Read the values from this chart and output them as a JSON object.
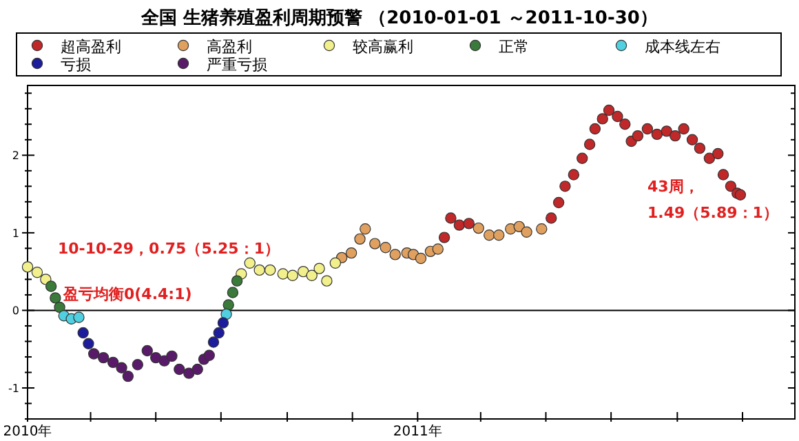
{
  "chart_data": {
    "type": "scatter",
    "title": "全国 生猪养殖盈利周期预警 （2010-01-01 ～2011-10-30）",
    "legend": "top",
    "grid": false,
    "marker": "circle",
    "xlim": [
      "2010-01-01",
      "2011-12-20"
    ],
    "xticks": [
      {
        "value": "2010-01-01",
        "label": "2010年"
      },
      {
        "value": "2010-03-01",
        "label": null
      },
      {
        "value": "2010-05-01",
        "label": null
      },
      {
        "value": "2010-07-01",
        "label": null
      },
      {
        "value": "2010-09-01",
        "label": null
      },
      {
        "value": "2010-11-01",
        "label": null
      },
      {
        "value": "2011-01-01",
        "label": "2011年"
      },
      {
        "value": "2011-03-01",
        "label": null
      },
      {
        "value": "2011-05-01",
        "label": null
      },
      {
        "value": "2011-07-01",
        "label": null
      },
      {
        "value": "2011-09-01",
        "label": null
      },
      {
        "value": "2011-11-01",
        "label": null
      }
    ],
    "ylim": [
      -1.4,
      2.9
    ],
    "yticks": [
      {
        "value": -1.4,
        "label": null
      },
      {
        "value": -1.2,
        "label": null
      },
      {
        "value": -1,
        "label": "-1"
      },
      {
        "value": -0.8,
        "label": null
      },
      {
        "value": -0.6,
        "label": null
      },
      {
        "value": -0.4,
        "label": null
      },
      {
        "value": -0.2,
        "label": null
      },
      0,
      {
        "value": 0.2,
        "label": null
      },
      {
        "value": 0.4,
        "label": null
      },
      {
        "value": 0.6,
        "label": null
      },
      {
        "value": 0.8,
        "label": null
      },
      1,
      {
        "value": 1.2,
        "label": null
      },
      {
        "value": 1.4,
        "label": null
      },
      {
        "value": 1.6,
        "label": null
      },
      {
        "value": 1.8,
        "label": null
      },
      2,
      {
        "value": 2.2,
        "label": null
      },
      {
        "value": 2.4,
        "label": null
      },
      {
        "value": 2.6,
        "label": null
      },
      {
        "value": 2.8,
        "label": null
      }
    ],
    "ref_lines": [
      {
        "axis": "y",
        "value": 0,
        "label": "盈亏均衡0(4.4:1)",
        "color": "#000000"
      }
    ],
    "annotations": [
      "10-10-29，0.75（5.25：1）",
      "43周，",
      "1.49（5.89：1）"
    ],
    "series": [
      {
        "name": "超高盈利",
        "color": "#c0282a",
        "x": [
          "2011-01-26",
          "2011-02-01",
          "2011-02-09",
          "2011-02-18",
          "2011-05-06",
          "2011-05-13",
          "2011-05-19",
          "2011-05-27",
          "2011-06-04",
          "2011-06-11",
          "2011-06-16",
          "2011-06-23",
          "2011-06-29",
          "2011-07-07",
          "2011-07-14",
          "2011-07-20",
          "2011-07-26",
          "2011-08-04",
          "2011-08-13",
          "2011-08-22",
          "2011-08-30",
          "2011-09-07",
          "2011-09-15",
          "2011-09-22",
          "2011-10-01",
          "2011-10-09",
          "2011-10-14",
          "2011-10-21",
          "2011-10-27",
          "2011-10-30"
        ],
        "values": [
          0.94,
          1.19,
          1.1,
          1.12,
          1.19,
          1.39,
          1.6,
          1.75,
          1.96,
          2.14,
          2.34,
          2.47,
          2.58,
          2.5,
          2.4,
          2.18,
          2.25,
          2.34,
          2.27,
          2.31,
          2.25,
          2.34,
          2.2,
          2.09,
          1.96,
          2.02,
          1.75,
          1.6,
          1.51,
          1.49
        ]
      },
      {
        "name": "高盈利",
        "color": "#e0a060",
        "x": [
          "2010-10-22",
          "2010-10-31",
          "2010-11-08",
          "2010-11-13",
          "2010-11-22",
          "2010-12-02",
          "2010-12-11",
          "2010-12-22",
          "2010-12-28",
          "2011-01-04",
          "2011-01-13",
          "2011-01-20",
          "2011-02-27",
          "2011-03-09",
          "2011-03-18",
          "2011-03-29",
          "2011-04-06",
          "2011-04-13",
          "2011-04-27"
        ],
        "values": [
          0.68,
          0.74,
          0.92,
          1.05,
          0.86,
          0.81,
          0.72,
          0.74,
          0.72,
          0.67,
          0.76,
          0.79,
          1.06,
          0.97,
          0.97,
          1.05,
          1.08,
          1.01,
          1.05
        ]
      },
      {
        "name": "较高赢利",
        "color": "#f2f08c",
        "x": [
          "2010-01-01",
          "2010-01-10",
          "2010-01-18",
          "2010-07-20",
          "2010-07-28",
          "2010-08-06",
          "2010-08-16",
          "2010-08-28",
          "2010-09-06",
          "2010-09-16",
          "2010-09-24",
          "2010-10-01",
          "2010-10-08",
          "2010-10-16"
        ],
        "values": [
          0.56,
          0.49,
          0.4,
          0.47,
          0.61,
          0.52,
          0.52,
          0.47,
          0.45,
          0.5,
          0.45,
          0.54,
          0.38,
          0.61
        ]
      },
      {
        "name": "正常",
        "color": "#3a7a3a",
        "x": [
          "2010-01-23",
          "2010-01-27",
          "2010-01-31",
          "2010-07-08",
          "2010-07-12",
          "2010-07-16"
        ],
        "values": [
          0.31,
          0.16,
          0.04,
          0.07,
          0.23,
          0.38
        ]
      },
      {
        "name": "成本线左右",
        "color": "#50d0e0",
        "x": [
          "2010-02-04",
          "2010-02-11",
          "2010-02-18",
          "2010-07-06"
        ],
        "values": [
          -0.07,
          -0.11,
          -0.09,
          -0.05
        ]
      },
      {
        "name": "亏损",
        "color": "#1c1c9c",
        "x": [
          "2010-02-22",
          "2010-02-27",
          "2010-06-24",
          "2010-06-29",
          "2010-07-03"
        ],
        "values": [
          -0.29,
          -0.43,
          -0.41,
          -0.29,
          -0.16
        ]
      },
      {
        "name": "严重亏损",
        "color": "#5a1a6a",
        "x": [
          "2010-03-04",
          "2010-03-13",
          "2010-03-22",
          "2010-03-30",
          "2010-04-05",
          "2010-04-14",
          "2010-04-23",
          "2010-05-01",
          "2010-05-09",
          "2010-05-16",
          "2010-05-23",
          "2010-06-01",
          "2010-06-09",
          "2010-06-15",
          "2010-06-20"
        ],
        "values": [
          -0.56,
          -0.61,
          -0.67,
          -0.74,
          -0.85,
          -0.7,
          -0.52,
          -0.61,
          -0.65,
          -0.59,
          -0.76,
          -0.81,
          -0.76,
          -0.63,
          -0.58
        ]
      }
    ]
  }
}
